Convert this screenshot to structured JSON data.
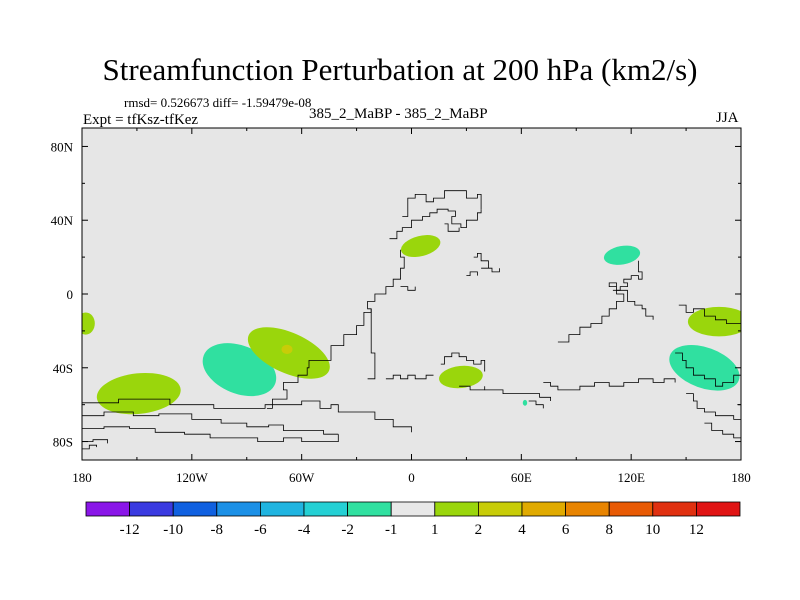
{
  "chart_data": {
    "type": "heatmap",
    "title": "Streamfunction Perturbation at 200 hPa (km2/s)",
    "stats": "rmsd= 0.526673 diff= -1.59479e-08",
    "experiment": "Expt = tfKsz-tfKez",
    "subtitle": "385_2_MaBP - 385_2_MaBP",
    "season": "JJA",
    "x_range": [
      -180,
      180
    ],
    "y_range": [
      -90,
      90
    ],
    "x_ticks": [
      {
        "value": -180,
        "label": "180"
      },
      {
        "value": -120,
        "label": "120W"
      },
      {
        "value": -60,
        "label": "60W"
      },
      {
        "value": 0,
        "label": "0"
      },
      {
        "value": 60,
        "label": "60E"
      },
      {
        "value": 120,
        "label": "120E"
      },
      {
        "value": 180,
        "label": "180"
      }
    ],
    "y_ticks": [
      {
        "value": 80,
        "label": "80N"
      },
      {
        "value": 40,
        "label": "40N"
      },
      {
        "value": 0,
        "label": "0"
      },
      {
        "value": -40,
        "label": "40S"
      },
      {
        "value": -80,
        "label": "80S"
      }
    ],
    "colorbar": {
      "labels": [
        "-12",
        "-10",
        "-8",
        "-6",
        "-4",
        "-2",
        "-1",
        "1",
        "2",
        "4",
        "6",
        "8",
        "10",
        "12"
      ],
      "colors": [
        "#8a16e8",
        "#3a3ae0",
        "#1060e0",
        "#1c90e6",
        "#20b4e0",
        "#24d0d4",
        "#30e0a0",
        "#e8e8e8",
        "#9ad60c",
        "#c8cc08",
        "#e0aa00",
        "#e88400",
        "#e85a04",
        "#e03010",
        "#e01414"
      ]
    },
    "features": [
      {
        "kind": "blob",
        "lon": -149,
        "lat": -54,
        "rx": 23,
        "ry": 11,
        "rot": -6,
        "color": "#9ad60c"
      },
      {
        "kind": "blob",
        "lon": -94,
        "lat": -41,
        "rx": 21,
        "ry": 13,
        "rot": 22,
        "color": "#30e0a0"
      },
      {
        "kind": "blob",
        "lon": -67,
        "lat": -32,
        "rx": 24,
        "ry": 11,
        "rot": 24,
        "color": "#9ad60c"
      },
      {
        "kind": "blob",
        "lon": -68,
        "lat": -30,
        "rx": 3,
        "ry": 2.5,
        "rot": 0,
        "color": "#c8cc08"
      },
      {
        "kind": "blob",
        "lon": -178,
        "lat": -16,
        "rx": 5,
        "ry": 6,
        "rot": 0,
        "color": "#9ad60c"
      },
      {
        "kind": "blob",
        "lon": 5,
        "lat": 26,
        "rx": 11,
        "ry": 5.5,
        "rot": -14,
        "color": "#9ad60c"
      },
      {
        "kind": "blob",
        "lon": 115,
        "lat": 21,
        "rx": 10,
        "ry": 5,
        "rot": -10,
        "color": "#30e0a0"
      },
      {
        "kind": "blob",
        "lon": 27,
        "lat": -45,
        "rx": 12,
        "ry": 6,
        "rot": -6,
        "color": "#9ad60c"
      },
      {
        "kind": "blob",
        "lon": 62,
        "lat": -59,
        "rx": 1.2,
        "ry": 1.6,
        "rot": 0,
        "color": "#30e0a0"
      },
      {
        "kind": "blob",
        "lon": 160,
        "lat": -40,
        "rx": 20,
        "ry": 11,
        "rot": 20,
        "color": "#30e0a0"
      },
      {
        "kind": "blob",
        "lon": 168,
        "lat": -15,
        "rx": 17,
        "ry": 8,
        "rot": 0,
        "color": "#9ad60c"
      }
    ],
    "coastlines": [
      [
        [
          -180,
          -59
        ],
        [
          -160,
          -57
        ],
        [
          -148,
          -57
        ],
        [
          -132,
          -60
        ],
        [
          -118,
          -60
        ],
        [
          -108,
          -62
        ],
        [
          -96,
          -62
        ],
        [
          -80,
          -60
        ],
        [
          -70,
          -60
        ],
        [
          -60,
          -58
        ],
        [
          -50,
          -62
        ],
        [
          -44,
          -60
        ],
        [
          -40,
          -64
        ],
        [
          -30,
          -64
        ],
        [
          -20,
          -68
        ],
        [
          -10,
          -72
        ],
        [
          0,
          -75
        ]
      ],
      [
        [
          -180,
          -66
        ],
        [
          -168,
          -64
        ],
        [
          -152,
          -66
        ],
        [
          -138,
          -65
        ],
        [
          -120,
          -68
        ],
        [
          -104,
          -70
        ],
        [
          -90,
          -72
        ],
        [
          -78,
          -71
        ],
        [
          -70,
          -74
        ],
        [
          -58,
          -74
        ],
        [
          -48,
          -76
        ],
        [
          -40,
          -76
        ]
      ],
      [
        [
          -180,
          -73
        ],
        [
          -168,
          -72
        ],
        [
          -154,
          -73
        ],
        [
          -140,
          -75
        ],
        [
          -124,
          -76
        ],
        [
          -110,
          -78
        ],
        [
          -96,
          -78
        ],
        [
          -84,
          -80
        ],
        [
          -70,
          -78
        ],
        [
          -60,
          -80
        ],
        [
          -40,
          -76
        ]
      ],
      [
        [
          -180,
          -80
        ],
        [
          -174,
          -79
        ],
        [
          -166,
          -81
        ]
      ],
      [
        [
          -180,
          -84
        ],
        [
          -176,
          -82
        ],
        [
          -172,
          -83
        ]
      ],
      [
        [
          -79,
          -62
        ],
        [
          -76,
          -57
        ],
        [
          -72,
          -57
        ],
        [
          -68,
          -52
        ],
        [
          -70,
          -48
        ],
        [
          -62,
          -44
        ],
        [
          -57,
          -40
        ],
        [
          -56,
          -36
        ],
        [
          -50,
          -36
        ],
        [
          -44,
          -28
        ],
        [
          -40,
          -28
        ],
        [
          -37,
          -22
        ],
        [
          -30,
          -17
        ]
      ],
      [
        [
          -24,
          -46
        ],
        [
          -20,
          -40
        ],
        [
          -20,
          -32
        ],
        [
          -22,
          -26
        ],
        [
          -22,
          -8
        ],
        [
          -24,
          -4
        ],
        [
          -20,
          0
        ],
        [
          -14,
          4
        ],
        [
          -10,
          8
        ],
        [
          -6,
          14
        ],
        [
          -4,
          20
        ],
        [
          -6,
          24
        ]
      ],
      [
        [
          -30,
          -17
        ],
        [
          -26,
          -10
        ],
        [
          -22,
          -8
        ]
      ],
      [
        [
          -12,
          30
        ],
        [
          -8,
          34
        ],
        [
          -5,
          36
        ],
        [
          0,
          40
        ],
        [
          6,
          42
        ],
        [
          10,
          44
        ],
        [
          14,
          46
        ],
        [
          20,
          45
        ],
        [
          24,
          42
        ],
        [
          22,
          38
        ],
        [
          27,
          36
        ],
        [
          30,
          40
        ],
        [
          34,
          40
        ],
        [
          36,
          44
        ],
        [
          38,
          46
        ]
      ],
      [
        [
          -5,
          42
        ],
        [
          -2,
          46
        ],
        [
          -2,
          52
        ],
        [
          2,
          54
        ],
        [
          8,
          50
        ],
        [
          12,
          52
        ],
        [
          18,
          56
        ],
        [
          26,
          56
        ],
        [
          30,
          52
        ],
        [
          36,
          54
        ],
        [
          38,
          46
        ]
      ],
      [
        [
          18,
          38
        ],
        [
          20,
          34
        ],
        [
          26,
          36
        ]
      ],
      [
        [
          34,
          20
        ],
        [
          36,
          22
        ],
        [
          38,
          18
        ],
        [
          42,
          14
        ]
      ],
      [
        [
          -14,
          -46
        ],
        [
          -10,
          -44
        ],
        [
          -6,
          -46
        ],
        [
          -2,
          -44
        ],
        [
          2,
          -46
        ],
        [
          8,
          -44
        ],
        [
          12,
          -44
        ]
      ],
      [
        [
          16,
          -38
        ],
        [
          18,
          -34
        ],
        [
          22,
          -32
        ],
        [
          26,
          -34
        ],
        [
          30,
          -36
        ],
        [
          34,
          -38
        ],
        [
          38,
          -36
        ],
        [
          40,
          -42
        ]
      ],
      [
        [
          26,
          -50
        ],
        [
          32,
          -52
        ],
        [
          40,
          -50
        ]
      ],
      [
        [
          40,
          -52
        ],
        [
          50,
          -54
        ],
        [
          60,
          -54
        ],
        [
          70,
          -56
        ],
        [
          76,
          -58
        ]
      ],
      [
        [
          64,
          -58
        ],
        [
          68,
          -60
        ],
        [
          72,
          -62
        ]
      ],
      [
        [
          72,
          -48
        ],
        [
          76,
          -50
        ],
        [
          80,
          -52
        ],
        [
          86,
          -52
        ],
        [
          92,
          -50
        ],
        [
          100,
          -48
        ],
        [
          108,
          -50
        ],
        [
          116,
          -48
        ],
        [
          124,
          -46
        ],
        [
          132,
          -48
        ],
        [
          138,
          -46
        ],
        [
          144,
          -48
        ]
      ],
      [
        [
          80,
          -26
        ],
        [
          86,
          -22
        ],
        [
          92,
          -18
        ],
        [
          98,
          -16
        ],
        [
          104,
          -12
        ],
        [
          108,
          -8
        ],
        [
          112,
          -4
        ],
        [
          116,
          0
        ],
        [
          112,
          4
        ],
        [
          108,
          6
        ],
        [
          112,
          2
        ],
        [
          118,
          -4
        ],
        [
          122,
          -6
        ],
        [
          126,
          -8
        ],
        [
          128,
          -12
        ],
        [
          132,
          -14
        ]
      ],
      [
        [
          110,
          2
        ],
        [
          114,
          4
        ],
        [
          118,
          6
        ],
        [
          116,
          8
        ],
        [
          120,
          10
        ],
        [
          124,
          8
        ],
        [
          126,
          12
        ],
        [
          124,
          18
        ]
      ],
      [
        [
          146,
          -6
        ],
        [
          150,
          -10
        ],
        [
          154,
          -8
        ],
        [
          160,
          -12
        ],
        [
          166,
          -14
        ],
        [
          172,
          -16
        ],
        [
          180,
          -16
        ]
      ],
      [
        [
          144,
          -32
        ],
        [
          148,
          -36
        ],
        [
          150,
          -40
        ],
        [
          154,
          -44
        ],
        [
          160,
          -46
        ],
        [
          166,
          -50
        ],
        [
          170,
          -48
        ],
        [
          176,
          -44
        ],
        [
          180,
          -42
        ]
      ],
      [
        [
          150,
          -54
        ],
        [
          154,
          -58
        ],
        [
          156,
          -62
        ],
        [
          160,
          -64
        ],
        [
          166,
          -66
        ],
        [
          172,
          -66
        ],
        [
          176,
          -68
        ],
        [
          180,
          -70
        ]
      ],
      [
        [
          160,
          -70
        ],
        [
          164,
          -74
        ],
        [
          170,
          -76
        ],
        [
          176,
          -78
        ],
        [
          180,
          -80
        ]
      ],
      [
        [
          178,
          -60
        ],
        [
          180,
          -64
        ]
      ],
      [
        [
          30,
          10
        ],
        [
          32,
          12
        ],
        [
          36,
          10
        ]
      ],
      [
        [
          38,
          14
        ],
        [
          44,
          12
        ],
        [
          48,
          14
        ]
      ],
      [
        [
          -6,
          4
        ],
        [
          -2,
          2
        ],
        [
          2,
          4
        ]
      ]
    ]
  }
}
